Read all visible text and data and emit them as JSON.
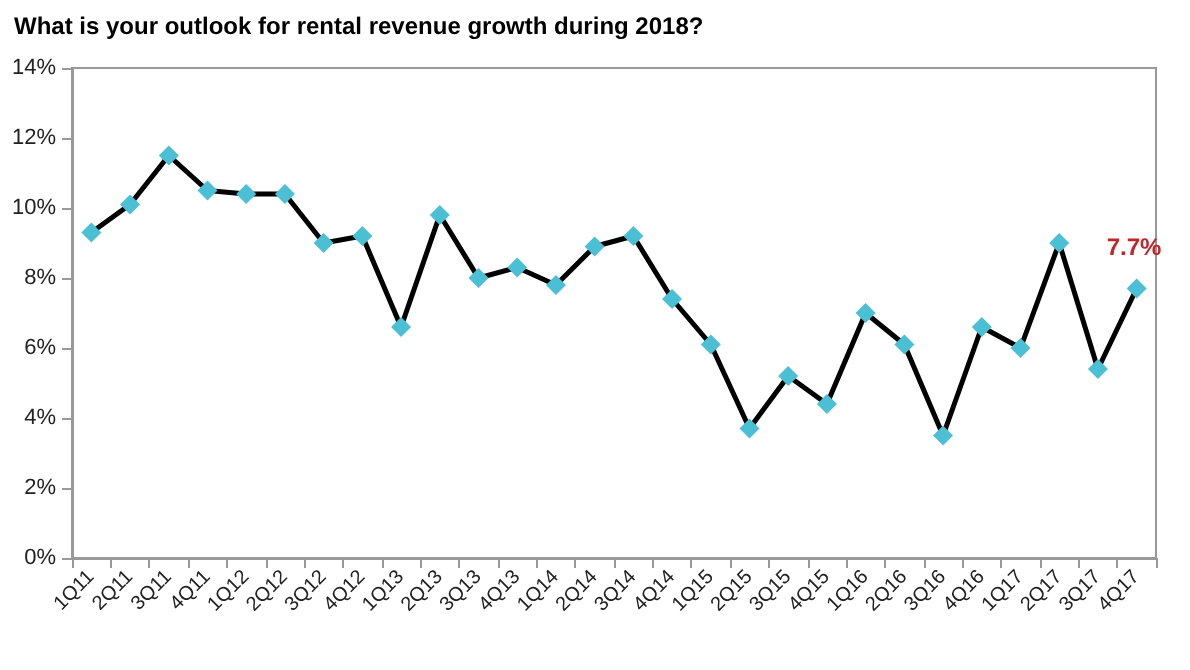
{
  "chart_data": {
    "type": "line",
    "title": "What is your outlook for rental revenue growth during 2018?",
    "categories": [
      "1Q11",
      "2Q11",
      "3Q11",
      "4Q11",
      "1Q12",
      "2Q12",
      "3Q12",
      "4Q12",
      "1Q13",
      "2Q13",
      "3Q13",
      "4Q13",
      "1Q14",
      "2Q14",
      "3Q14",
      "4Q14",
      "1Q15",
      "2Q15",
      "3Q15",
      "4Q15",
      "1Q16",
      "2Q16",
      "3Q16",
      "4Q16",
      "1Q17",
      "2Q17",
      "3Q17",
      "4Q17"
    ],
    "series": [
      {
        "color": "#000000",
        "colors": [
          "#4bbfd3",
          "#4bbfd3",
          "#4bbfd3",
          "#4bbfd3",
          "#4bbfd3",
          "#4bbfd3",
          "#4bbfd3",
          "#4bbfd3",
          "#4bbfd3",
          "#4bbfd3",
          "#4bbfd3",
          "#4bbfd3",
          "#4bbfd3",
          "#4bbfd3",
          "#4bbfd3",
          "#4bbfd3",
          "#4bbfd3",
          "#4bbfd3",
          "#4bbfd3",
          "#4bbfd3",
          "#4bbfd3",
          "#4bbfd3",
          "#4bbfd3",
          "#4bbfd3",
          "#4bbfd3",
          "#4bbfd3",
          "#4bbfd3",
          "#4bbfd3"
        ],
        "values": [
          9.3,
          10.1,
          11.5,
          10.5,
          10.4,
          10.4,
          9.0,
          9.2,
          6.6,
          9.8,
          8.0,
          8.3,
          7.8,
          8.9,
          9.2,
          7.4,
          6.1,
          3.7,
          5.2,
          4.4,
          7.0,
          6.1,
          3.5,
          6.6,
          6.0,
          9.0,
          5.4,
          7.7
        ],
        "value_labels": [
          null,
          null,
          null,
          null,
          null,
          null,
          null,
          null,
          null,
          null,
          null,
          null,
          null,
          null,
          null,
          null,
          null,
          null,
          null,
          null,
          null,
          null,
          null,
          null,
          null,
          null,
          null,
          "7.7%"
        ]
      }
    ],
    "ylim": [
      0,
      14
    ],
    "yticks": [
      {
        "value": 0,
        "label": "0%"
      },
      {
        "value": 2,
        "label": "2%"
      },
      {
        "value": 4,
        "label": "4%"
      },
      {
        "value": 6,
        "label": "6%"
      },
      {
        "value": 8,
        "label": "8%"
      },
      {
        "value": 10,
        "label": "10%"
      },
      {
        "value": 12,
        "label": "12%"
      },
      {
        "value": 14,
        "label": "14%"
      }
    ],
    "grid": false,
    "marker": "diamond",
    "line_style": "solid"
  }
}
